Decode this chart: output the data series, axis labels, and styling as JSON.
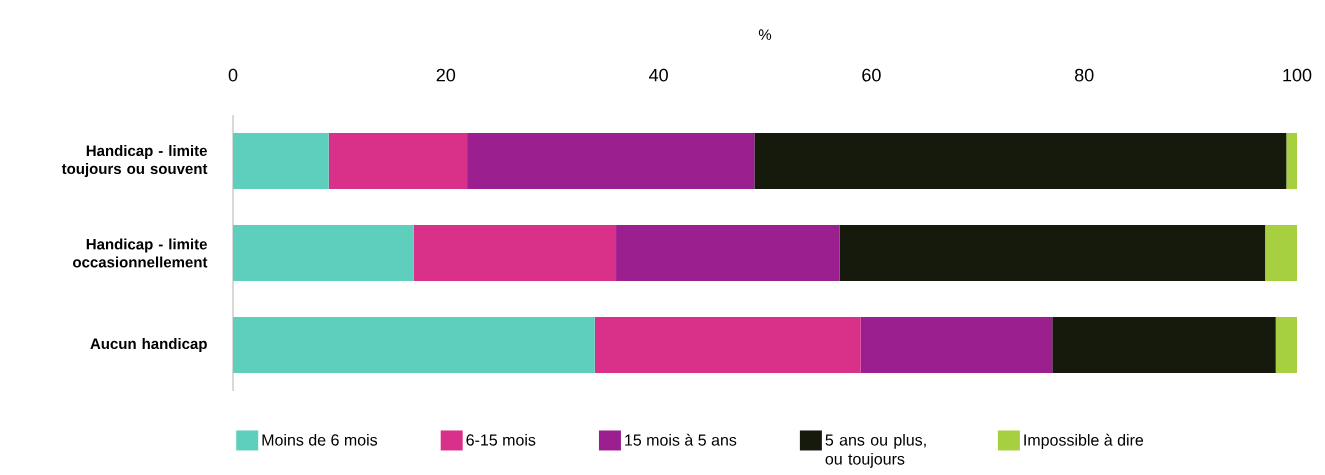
{
  "chart_data": {
    "type": "bar",
    "orientation": "horizontal",
    "stacked": true,
    "xlabel": "%",
    "categories": [
      "Handicap - limite toujours ou souvent",
      "Handicap - limite occasionnellement",
      "Aucun handicap"
    ],
    "xlim": [
      0,
      100
    ],
    "xticks": [
      0,
      20,
      40,
      60,
      80,
      100
    ],
    "legend": "bottom",
    "series": [
      {
        "name": "Moins de 6 mois",
        "color": "#5fcfbd",
        "values": [
          9,
          17,
          34
        ]
      },
      {
        "name": "6-15 mois",
        "color": "#d9308a",
        "values": [
          13,
          19,
          25
        ]
      },
      {
        "name": "15 mois à 5 ans",
        "color": "#9c1f8f",
        "values": [
          27,
          21,
          18
        ]
      },
      {
        "name": "5 ans ou plus, ou toujours",
        "color": "#151a0c",
        "values": [
          50,
          40,
          21
        ]
      },
      {
        "name": "Impossible à dire",
        "color": "#a6d03f",
        "values": [
          1,
          3,
          2
        ]
      }
    ]
  }
}
